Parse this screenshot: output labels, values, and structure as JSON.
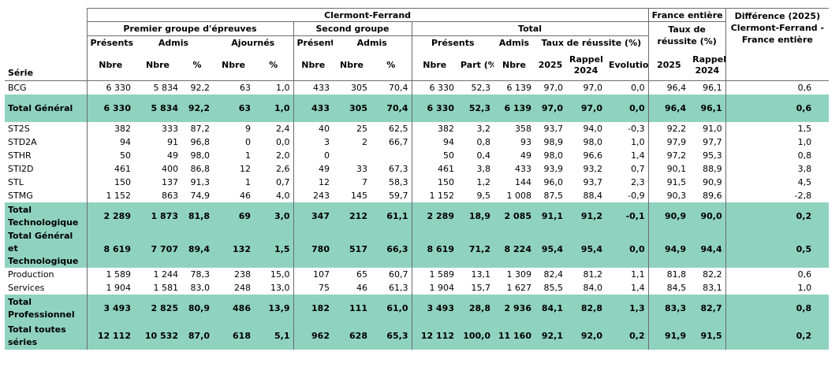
{
  "header": {
    "clermont": "Clermont-Ferrand",
    "france": "France entière",
    "difference": "Différence (2025) Clermont-Ferrand - France entière",
    "premier_groupe": "Premier groupe d'épreuves",
    "second_groupe": "Second groupe",
    "total": "Total",
    "taux_reussite": "Taux de réussite (%)",
    "presents": "Présents",
    "admis": "Admis",
    "ajournes": "Ajournés",
    "taux_reussite_pct": "Taux de réussite (%)",
    "serie": "Série",
    "nbre": "Nbre",
    "pct": "%",
    "part": "Part (%)",
    "y2025": "2025",
    "rappel": "Rappel 2024",
    "evolution": "Evolution"
  },
  "colors": {
    "total_row_bg": "#8fd3bf"
  },
  "rows": [
    {
      "type": "data",
      "label": "BCG",
      "c": [
        "6 330",
        "5 834",
        "92,2",
        "63",
        "1,0",
        "433",
        "305",
        "70,4",
        "6 330",
        "52,3",
        "6 139",
        "97,0",
        "97,0",
        "0,0",
        "96,4",
        "96,1",
        "0,6"
      ]
    },
    {
      "type": "total",
      "label": "Total Général",
      "c": [
        "6 330",
        "5 834",
        "92,2",
        "63",
        "1,0",
        "433",
        "305",
        "70,4",
        "6 330",
        "52,3",
        "6 139",
        "97,0",
        "97,0",
        "0,0",
        "96,4",
        "96,1",
        "0,6"
      ]
    },
    {
      "type": "data",
      "label": "ST2S",
      "c": [
        "382",
        "333",
        "87,2",
        "9",
        "2,4",
        "40",
        "25",
        "62,5",
        "382",
        "3,2",
        "358",
        "93,7",
        "94,0",
        "-0,3",
        "92,2",
        "91,0",
        "1,5"
      ]
    },
    {
      "type": "data",
      "label": "STD2A",
      "c": [
        "94",
        "91",
        "96,8",
        "0",
        "0,0",
        "3",
        "2",
        "66,7",
        "94",
        "0,8",
        "93",
        "98,9",
        "98,0",
        "1,0",
        "97,9",
        "97,7",
        "1,0"
      ]
    },
    {
      "type": "data",
      "label": "STHR",
      "c": [
        "50",
        "49",
        "98,0",
        "1",
        "2,0",
        "0",
        "",
        "",
        "50",
        "0,4",
        "49",
        "98,0",
        "96,6",
        "1,4",
        "97,2",
        "95,3",
        "0,8"
      ]
    },
    {
      "type": "data",
      "label": "STI2D",
      "c": [
        "461",
        "400",
        "86,8",
        "12",
        "2,6",
        "49",
        "33",
        "67,3",
        "461",
        "3,8",
        "433",
        "93,9",
        "93,2",
        "0,7",
        "90,1",
        "88,9",
        "3,8"
      ]
    },
    {
      "type": "data",
      "label": "STL",
      "c": [
        "150",
        "137",
        "91,3",
        "1",
        "0,7",
        "12",
        "7",
        "58,3",
        "150",
        "1,2",
        "144",
        "96,0",
        "93,7",
        "2,3",
        "91,5",
        "90,9",
        "4,5"
      ]
    },
    {
      "type": "data",
      "label": "STMG",
      "c": [
        "1 152",
        "863",
        "74,9",
        "46",
        "4,0",
        "243",
        "145",
        "59,7",
        "1 152",
        "9,5",
        "1 008",
        "87,5",
        "88,4",
        "-0,9",
        "90,3",
        "89,6",
        "-2,8"
      ]
    },
    {
      "type": "total",
      "label": "Total Technologique",
      "c": [
        "2 289",
        "1 873",
        "81,8",
        "69",
        "3,0",
        "347",
        "212",
        "61,1",
        "2 289",
        "18,9",
        "2 085",
        "91,1",
        "91,2",
        "-0,1",
        "90,9",
        "90,0",
        "0,2"
      ]
    },
    {
      "type": "total",
      "label": "Total Général et Technologique",
      "c": [
        "8 619",
        "7 707",
        "89,4",
        "132",
        "1,5",
        "780",
        "517",
        "66,3",
        "8 619",
        "71,2",
        "8 224",
        "95,4",
        "95,4",
        "0,0",
        "94,9",
        "94,4",
        "0,5"
      ]
    },
    {
      "type": "data",
      "label": "Production",
      "c": [
        "1 589",
        "1 244",
        "78,3",
        "238",
        "15,0",
        "107",
        "65",
        "60,7",
        "1 589",
        "13,1",
        "1 309",
        "82,4",
        "81,2",
        "1,1",
        "81,8",
        "82,2",
        "0,6"
      ]
    },
    {
      "type": "data",
      "label": "Services",
      "c": [
        "1 904",
        "1 581",
        "83,0",
        "248",
        "13,0",
        "75",
        "46",
        "61,3",
        "1 904",
        "15,7",
        "1 627",
        "85,5",
        "84,0",
        "1,4",
        "84,5",
        "83,1",
        "1,0"
      ]
    },
    {
      "type": "total",
      "label": "Total Professionnel",
      "c": [
        "3 493",
        "2 825",
        "80,9",
        "486",
        "13,9",
        "182",
        "111",
        "61,0",
        "3 493",
        "28,8",
        "2 936",
        "84,1",
        "82,8",
        "1,3",
        "83,3",
        "82,7",
        "0,8"
      ]
    },
    {
      "type": "total",
      "label": "Total toutes séries",
      "c": [
        "12 112",
        "10 532",
        "87,0",
        "618",
        "5,1",
        "962",
        "628",
        "65,3",
        "12 112",
        "100,0",
        "11 160",
        "92,1",
        "92,0",
        "0,2",
        "91,9",
        "91,5",
        "0,2"
      ]
    }
  ]
}
